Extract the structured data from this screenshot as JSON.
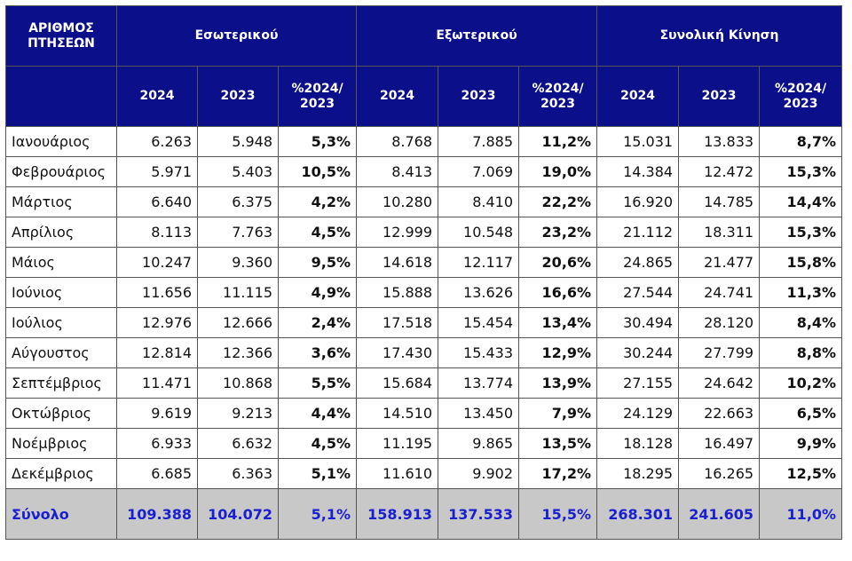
{
  "header": {
    "corner_label": "ΑΡΙΘΜΟΣ ΠΤΗΣΕΩΝ",
    "groups": [
      "Εσωτερικού",
      "Εξωτερικού",
      "Συνολική Κίνηση"
    ],
    "subcols": [
      "2024",
      "2023",
      "%2024/ 2023"
    ]
  },
  "rows": [
    {
      "month": "Ιανουάριος",
      "cells": [
        "6.263",
        "5.948",
        "5,3%",
        "8.768",
        "7.885",
        "11,2%",
        "15.031",
        "13.833",
        "8,7%"
      ]
    },
    {
      "month": "Φεβρουάριος",
      "cells": [
        "5.971",
        "5.403",
        "10,5%",
        "8.413",
        "7.069",
        "19,0%",
        "14.384",
        "12.472",
        "15,3%"
      ]
    },
    {
      "month": "Μάρτιος",
      "cells": [
        "6.640",
        "6.375",
        "4,2%",
        "10.280",
        "8.410",
        "22,2%",
        "16.920",
        "14.785",
        "14,4%"
      ]
    },
    {
      "month": "Απρίλιος",
      "cells": [
        "8.113",
        "7.763",
        "4,5%",
        "12.999",
        "10.548",
        "23,2%",
        "21.112",
        "18.311",
        "15,3%"
      ]
    },
    {
      "month": "Μάιος",
      "cells": [
        "10.247",
        "9.360",
        "9,5%",
        "14.618",
        "12.117",
        "20,6%",
        "24.865",
        "21.477",
        "15,8%"
      ]
    },
    {
      "month": "Ιούνιος",
      "cells": [
        "11.656",
        "11.115",
        "4,9%",
        "15.888",
        "13.626",
        "16,6%",
        "27.544",
        "24.741",
        "11,3%"
      ]
    },
    {
      "month": "Ιούλιος",
      "cells": [
        "12.976",
        "12.666",
        "2,4%",
        "17.518",
        "15.454",
        "13,4%",
        "30.494",
        "28.120",
        "8,4%"
      ]
    },
    {
      "month": "Αύγουστος",
      "cells": [
        "12.814",
        "12.366",
        "3,6%",
        "17.430",
        "15.433",
        "12,9%",
        "30.244",
        "27.799",
        "8,8%"
      ]
    },
    {
      "month": "Σεπτέμβριος",
      "cells": [
        "11.471",
        "10.868",
        "5,5%",
        "15.684",
        "13.774",
        "13,9%",
        "27.155",
        "24.642",
        "10,2%"
      ]
    },
    {
      "month": "Οκτώβριος",
      "cells": [
        "9.619",
        "9.213",
        "4,4%",
        "14.510",
        "13.450",
        "7,9%",
        "24.129",
        "22.663",
        "6,5%"
      ]
    },
    {
      "month": "Νοέμβριος",
      "cells": [
        "6.933",
        "6.632",
        "4,5%",
        "11.195",
        "9.865",
        "13,5%",
        "18.128",
        "16.497",
        "9,9%"
      ]
    },
    {
      "month": "Δεκέμβριος",
      "cells": [
        "6.685",
        "6.363",
        "5,1%",
        "11.610",
        "9.902",
        "17,2%",
        "18.295",
        "16.265",
        "12,5%"
      ]
    }
  ],
  "total": {
    "label": "Σύνολο",
    "cells": [
      "109.388",
      "104.072",
      "5,1%",
      "158.913",
      "137.533",
      "15,5%",
      "268.301",
      "241.605",
      "11,0%"
    ]
  },
  "colors": {
    "header_bg": "#0b0f8a",
    "total_bg": "#c8c8c8",
    "total_text": "#1a1fd0"
  }
}
